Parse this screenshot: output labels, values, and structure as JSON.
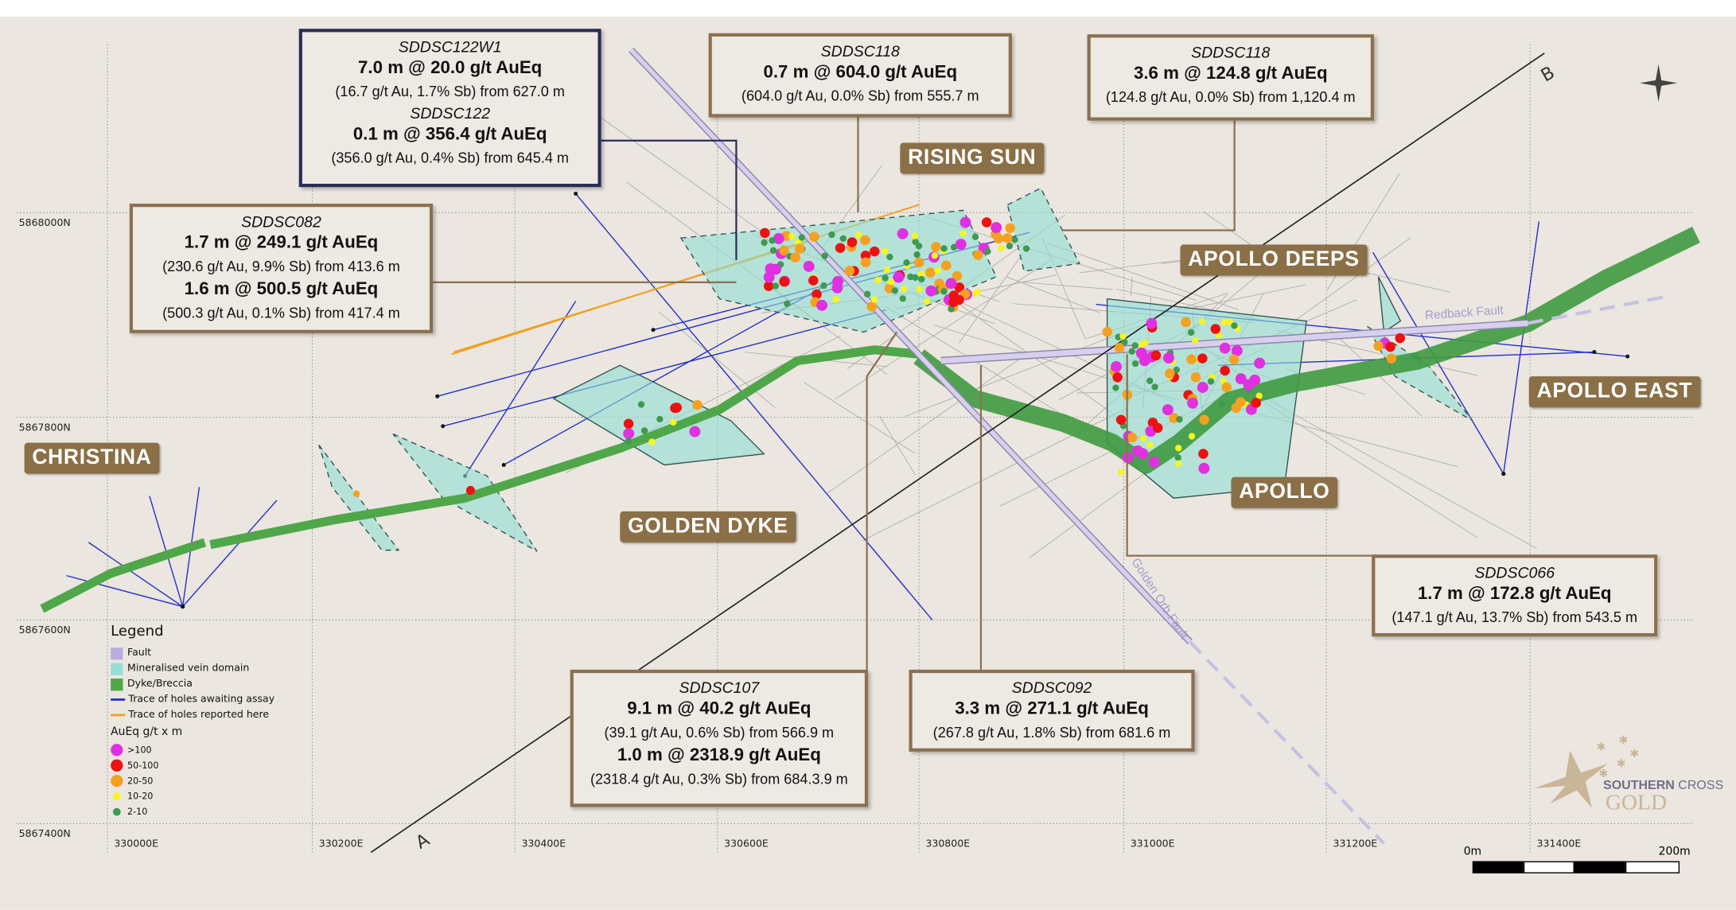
{
  "map": {
    "grid_eastings": [
      "330000E",
      "330200E",
      "330400E",
      "330600E",
      "330800E",
      "331000E",
      "331200E",
      "331400E"
    ],
    "grid_northings": [
      "5868000N",
      "5867800N",
      "5867600N",
      "5867400N"
    ],
    "section_labels": {
      "start": "A",
      "end": "B"
    },
    "faults": {
      "redback": "Redback Fault",
      "golden_orb": "Golden Orb Fault"
    },
    "colors": {
      "background": "#ebe6df",
      "dyke": "#4fa74a",
      "vein": "#8fe0d4",
      "fault": "#c9bfe3",
      "awaiting": "#2430c8",
      "reported": "#f0a020",
      "label_bg": "#8b6f47"
    }
  },
  "areas": {
    "rising_sun": "RISING SUN",
    "apollo_deeps": "APOLLO DEEPS",
    "apollo_east": "APOLLO EAST",
    "christina": "CHRISTINA",
    "golden_dyke": "GOLDEN DYKE",
    "apollo": "APOLLO"
  },
  "callouts": [
    {
      "hole": "SDDSC122W1",
      "main": "7.0 m @ 20.0 g/t AuEq",
      "sub": "(16.7 g/t Au, 1.7% Sb) from 627.0 m",
      "hole2": "SDDSC122",
      "main2": "0.1 m @ 356.4 g/t AuEq",
      "sub2": "(356.0 g/t Au, 0.4% Sb) from 645.4 m"
    },
    {
      "hole": "SDDSC118",
      "main": "0.7 m @ 604.0 g/t AuEq",
      "sub": "(604.0 g/t Au, 0.0% Sb) from 555.7 m"
    },
    {
      "hole": "SDDSC118",
      "main": "3.6 m @ 124.8 g/t AuEq",
      "sub": "(124.8 g/t Au, 0.0% Sb) from 1,120.4 m"
    },
    {
      "hole": "SDDSC082",
      "main": "1.7 m @ 249.1 g/t AuEq",
      "sub": "(230.6 g/t Au, 9.9% Sb) from 413.6 m",
      "main2": "1.6 m @ 500.5 g/t AuEq",
      "sub2": "(500.3 g/t Au, 0.1% Sb) from 417.4 m"
    },
    {
      "hole": "SDDSC066",
      "main": "1.7 m @ 172.8 g/t AuEq",
      "sub": "(147.1 g/t Au, 13.7% Sb) from 543.5 m"
    },
    {
      "hole": "SDDSC107",
      "main": "9.1 m @ 40.2 g/t AuEq",
      "sub": "(39.1 g/t Au, 0.6% Sb) from 566.9 m",
      "main2": "1.0 m @ 2318.9 g/t AuEq",
      "sub2": "(2318.4 g/t Au, 0.3% Sb) from 684.3.9 m"
    },
    {
      "hole": "SDDSC092",
      "main": "3.3 m @ 271.1 g/t AuEq",
      "sub": "(267.8 g/t Au, 1.8% Sb) from 681.6 m"
    }
  ],
  "legend": {
    "title": "Legend",
    "items": [
      "Fault",
      "Mineralised vein domain",
      "Dyke/Breccia",
      "Trace of holes awaiting assay",
      "Trace of holes reported here"
    ],
    "grade_title": "AuEq g/t x m",
    "grades": [
      {
        "label": ">100",
        "color": "#e030e0"
      },
      {
        "label": "50-100",
        "color": "#ee1111"
      },
      {
        "label": "20-50",
        "color": "#f5a020"
      },
      {
        "label": "10-20",
        "color": "#f5f520"
      },
      {
        "label": "2-10",
        "color": "#3d9a50"
      }
    ]
  },
  "scale_bar": {
    "start": "0m",
    "end": "200m"
  },
  "logo": {
    "line1a": "SOUTHERN",
    "line1b": "CROSS",
    "line2": "GOLD"
  }
}
